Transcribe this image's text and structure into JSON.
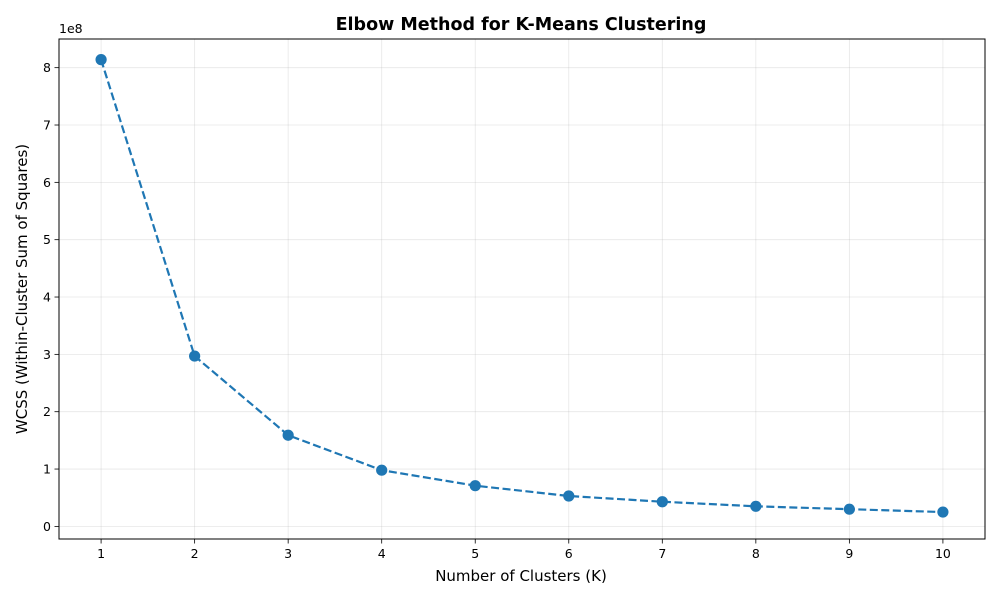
{
  "chart_data": {
    "type": "line",
    "title": "Elbow Method for K-Means Clustering",
    "xlabel": "Number of Clusters (K)",
    "ylabel": "WCSS (Within-Cluster Sum of Squares)",
    "y_offset_label": "1e8",
    "x_ticks": [
      "1",
      "2",
      "3",
      "4",
      "5",
      "6",
      "7",
      "8",
      "9",
      "10"
    ],
    "y_ticks": [
      "0",
      "1",
      "2",
      "3",
      "4",
      "5",
      "6",
      "7",
      "8"
    ],
    "xlim": [
      0.55,
      10.45
    ],
    "ylim": [
      -0.22,
      8.5
    ],
    "grid": true,
    "line_style": "dashed",
    "marker": "circle",
    "color": "#1f77b4",
    "series": [
      {
        "x": [
          1,
          2,
          3,
          4,
          5,
          6,
          7,
          8,
          9,
          10
        ],
        "values": [
          8.14,
          2.97,
          1.59,
          0.98,
          0.71,
          0.53,
          0.43,
          0.35,
          0.3,
          0.25
        ]
      }
    ]
  }
}
